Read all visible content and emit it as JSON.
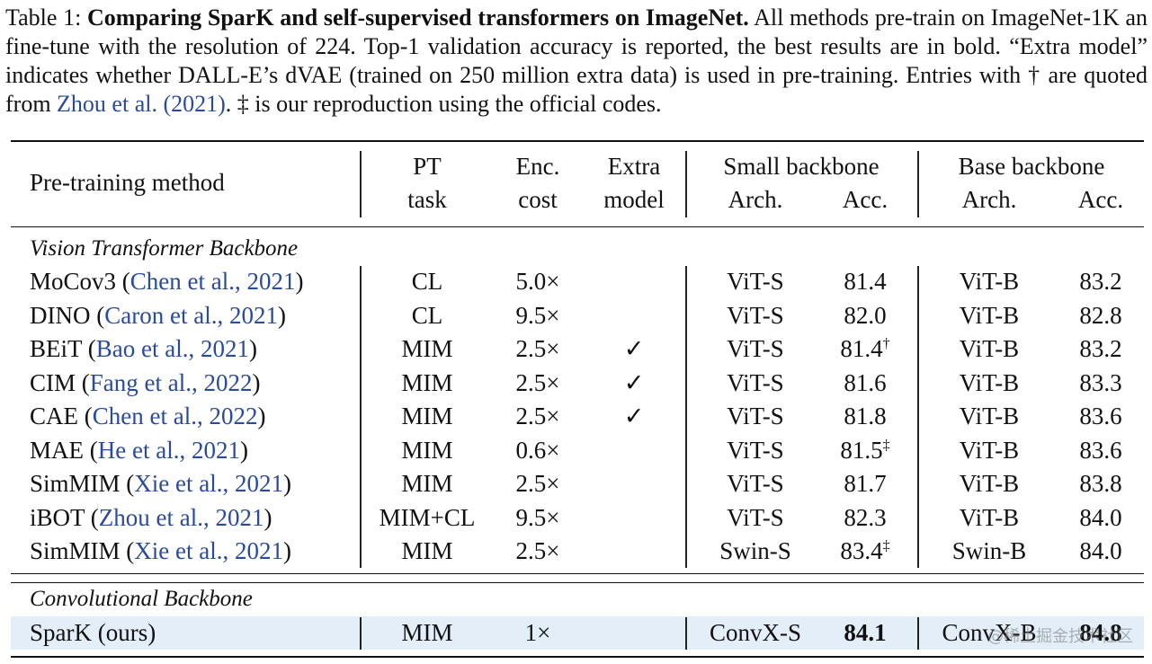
{
  "caption": {
    "label": "Table 1:",
    "title": "Comparing SparK and self-supervised transformers on ImageNet.",
    "body1": "All methods pre-train on ImageNet-1K an fine-tune with the resolution of 224. Top-1 validation accuracy is reported, the best results are in bold. “Extra model” indicates whether DALL-E’s dVAE (trained on 250 million extra data) is used in pre-training. Entries with † are quoted from",
    "cite": "Zhou et al. (2021)",
    "body2": ". ‡ is our reproduction using the official codes."
  },
  "header": {
    "method": "Pre-training method",
    "pt1": "PT",
    "pt2": "task",
    "enc1": "Enc.",
    "enc2": "cost",
    "extra1": "Extra",
    "extra2": "model",
    "small": "Small backbone",
    "base": "Base backbone",
    "arch": "Arch.",
    "acc": "Acc."
  },
  "sections": {
    "vit": "Vision Transformer Backbone",
    "conv": "Convolutional Backbone"
  },
  "rows": [
    {
      "name": "MoCov3",
      "cite": "Chen et al., 2021",
      "task": "CL",
      "cost": "5.0×",
      "extra": "",
      "s_arch": "ViT-S",
      "s_acc": "81.4",
      "s_mark": "",
      "b_arch": "ViT-B",
      "b_acc": "83.2"
    },
    {
      "name": "DINO",
      "cite": "Caron et al., 2021",
      "task": "CL",
      "cost": "9.5×",
      "extra": "",
      "s_arch": "ViT-S",
      "s_acc": "82.0",
      "s_mark": "",
      "b_arch": "ViT-B",
      "b_acc": "82.8"
    },
    {
      "name": "BEiT",
      "cite": "Bao et al., 2021",
      "task": "MIM",
      "cost": "2.5×",
      "extra": "✓",
      "s_arch": "ViT-S",
      "s_acc": "81.4",
      "s_mark": "†",
      "b_arch": "ViT-B",
      "b_acc": "83.2"
    },
    {
      "name": "CIM",
      "cite": "Fang et al., 2022",
      "task": "MIM",
      "cost": "2.5×",
      "extra": "✓",
      "s_arch": "ViT-S",
      "s_acc": "81.6",
      "s_mark": "",
      "b_arch": "ViT-B",
      "b_acc": "83.3"
    },
    {
      "name": "CAE",
      "cite": "Chen et al., 2022",
      "task": "MIM",
      "cost": "2.5×",
      "extra": "✓",
      "s_arch": "ViT-S",
      "s_acc": "81.8",
      "s_mark": "",
      "b_arch": "ViT-B",
      "b_acc": "83.6"
    },
    {
      "name": "MAE",
      "cite": "He et al., 2021",
      "task": "MIM",
      "cost": "0.6×",
      "extra": "",
      "s_arch": "ViT-S",
      "s_acc": "81.5",
      "s_mark": "‡",
      "b_arch": "ViT-B",
      "b_acc": "83.6"
    },
    {
      "name": "SimMIM",
      "cite": "Xie et al., 2021",
      "task": "MIM",
      "cost": "2.5×",
      "extra": "",
      "s_arch": "ViT-S",
      "s_acc": "81.7",
      "s_mark": "",
      "b_arch": "ViT-B",
      "b_acc": "83.8"
    },
    {
      "name": "iBOT",
      "cite": "Zhou et al., 2021",
      "task": "MIM+CL",
      "cost": "9.5×",
      "extra": "",
      "s_arch": "ViT-S",
      "s_acc": "82.3",
      "s_mark": "",
      "b_arch": "ViT-B",
      "b_acc": "84.0"
    },
    {
      "name": "SimMIM",
      "cite": "Xie et al., 2021",
      "task": "MIM",
      "cost": "2.5×",
      "extra": "",
      "s_arch": "Swin-S",
      "s_acc": "83.4",
      "s_mark": "‡",
      "b_arch": "Swin-B",
      "b_acc": "84.0"
    }
  ],
  "ours": {
    "name": "SparK (ours)",
    "task": "MIM",
    "cost": "1×",
    "s_arch": "ConvX-S",
    "s_acc": "84.1",
    "b_arch": "ConvX-B",
    "b_acc": "84.8"
  },
  "watermark": "@稀土掘金技术社区",
  "colors": {
    "cite": "#2a4b9b",
    "highlight": "#e3eef9"
  }
}
